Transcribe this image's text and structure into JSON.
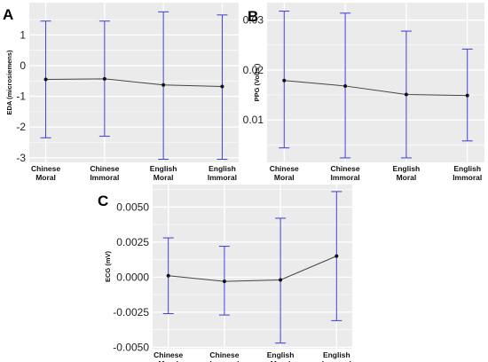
{
  "chart_data": [
    {
      "panel": "A",
      "type": "line",
      "ylabel": "EDA (microsiemens)",
      "categories": [
        [
          "Chinese",
          "Moral"
        ],
        [
          "Chinese",
          "Immoral"
        ],
        [
          "English",
          "Moral"
        ],
        [
          "English",
          "Immoral"
        ]
      ],
      "values": [
        -0.45,
        -0.43,
        -0.63,
        -0.68
      ],
      "error_low": [
        -2.35,
        -2.3,
        -3.05,
        -3.05
      ],
      "error_high": [
        1.45,
        1.45,
        1.75,
        1.65
      ],
      "ylim": [
        -3.15,
        2.05
      ],
      "yticks": [
        -3,
        -2,
        -1,
        0,
        1
      ],
      "ytick_labels": [
        "-3",
        "-2",
        "-1",
        "0",
        "1"
      ],
      "grid": true,
      "colors": {
        "background": "#ebebeb",
        "grid": "#ffffff",
        "line": "#444444",
        "errorbar": "#3c3cd8"
      }
    },
    {
      "panel": "B",
      "type": "line",
      "ylabel": "PPG (Volts )",
      "categories": [
        [
          "Chinese",
          "Moral"
        ],
        [
          "Chinese",
          "Immoral"
        ],
        [
          "English",
          "Moral"
        ],
        [
          "English",
          "Immoral"
        ]
      ],
      "values": [
        0.0179,
        0.0168,
        0.0151,
        0.0149
      ],
      "error_low": [
        0.0044,
        0.0024,
        0.0024,
        0.0058
      ],
      "error_high": [
        0.0318,
        0.0314,
        0.0278,
        0.0242
      ],
      "ylim": [
        0.0015,
        0.0335
      ],
      "yticks": [
        0.01,
        0.02,
        0.03
      ],
      "ytick_labels": [
        "0.01",
        "0.02",
        "0.03"
      ],
      "grid": true,
      "colors": {
        "background": "#ebebeb",
        "grid": "#ffffff",
        "line": "#444444",
        "errorbar": "#3c3cd8"
      }
    },
    {
      "panel": "C",
      "type": "line",
      "ylabel": "ECG (mV)",
      "categories": [
        [
          "Chinese",
          "Moral"
        ],
        [
          "Chinese",
          "Immoral"
        ],
        [
          "English",
          "Moral"
        ],
        [
          "English",
          "Immoral"
        ]
      ],
      "values": [
        0.0001,
        -0.0003,
        -0.0002,
        0.0015
      ],
      "error_low": [
        -0.0026,
        -0.0027,
        -0.0047,
        -0.0031
      ],
      "error_high": [
        0.0028,
        0.0022,
        0.0042,
        0.0061
      ],
      "ylim": [
        -0.0051,
        0.0066
      ],
      "yticks": [
        -0.005,
        -0.0025,
        0.0,
        0.0025,
        0.005
      ],
      "ytick_labels": [
        "-0.0050",
        "-0.0025",
        "0.0000",
        "0.0025",
        "0.0050"
      ],
      "grid": true,
      "colors": {
        "background": "#ebebeb",
        "grid": "#ffffff",
        "line": "#444444",
        "errorbar": "#3c3cd8"
      }
    }
  ]
}
